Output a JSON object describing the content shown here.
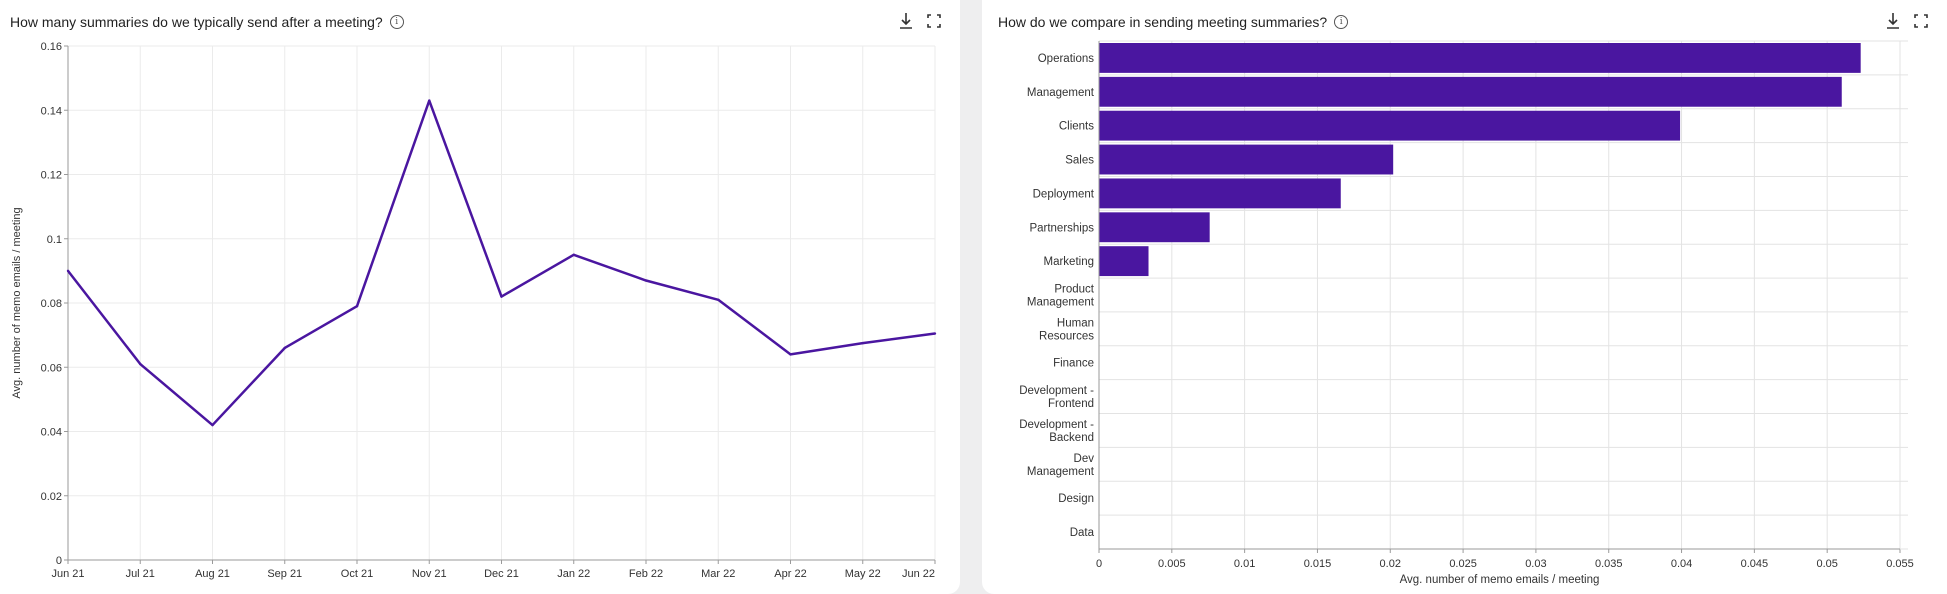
{
  "colors": {
    "series": "#4a16a0",
    "grid": "#ebebeb",
    "axis": "#9a9a9a",
    "text": "#333333"
  },
  "icons": {
    "info": "info-icon",
    "download": "download-icon",
    "fullscreen": "fullscreen-icon"
  },
  "chart_data": [
    {
      "type": "line",
      "title": "How many summaries do we typically send after a meeting?",
      "ylabel": "Avg. number of memo emails / meeting",
      "xlabel": "",
      "categories": [
        "Jun 21",
        "Jul 21",
        "Aug 21",
        "Sep 21",
        "Oct 21",
        "Nov 21",
        "Dec 21",
        "Jan 22",
        "Feb 22",
        "Mar 22",
        "Apr 22",
        "May 22",
        "Jun 22"
      ],
      "values": [
        0.09,
        0.061,
        0.042,
        0.066,
        0.079,
        0.143,
        0.082,
        0.095,
        0.087,
        0.081,
        0.064,
        0.0675,
        0.0705
      ],
      "ylim": [
        0,
        0.16
      ],
      "yticks": [
        "0",
        "0.02",
        "0.04",
        "0.06",
        "0.08",
        "0.1",
        "0.12",
        "0.14",
        "0.16"
      ],
      "grid": true
    },
    {
      "type": "bar",
      "orientation": "horizontal",
      "title": "How do we compare in sending meeting summaries?",
      "xlabel": "Avg. number of memo emails / meeting",
      "ylabel": "",
      "categories": [
        [
          "Operations"
        ],
        [
          "Management"
        ],
        [
          "Clients"
        ],
        [
          "Sales"
        ],
        [
          "Deployment"
        ],
        [
          "Partnerships"
        ],
        [
          "Marketing"
        ],
        [
          "Product",
          "Management"
        ],
        [
          "Human",
          "Resources"
        ],
        [
          "Finance"
        ],
        [
          "Development -",
          "Frontend"
        ],
        [
          "Development -",
          "Backend"
        ],
        [
          "Dev",
          "Management"
        ],
        [
          "Design"
        ],
        [
          "Data"
        ]
      ],
      "values": [
        0.0523,
        0.051,
        0.0399,
        0.0202,
        0.0166,
        0.0076,
        0.0034,
        0,
        0,
        0,
        0,
        0,
        0,
        0,
        0
      ],
      "xlim": [
        0,
        0.055
      ],
      "xticks": [
        "0",
        "0.005",
        "0.01",
        "0.015",
        "0.02",
        "0.025",
        "0.03",
        "0.035",
        "0.04",
        "0.045",
        "0.05",
        "0.055"
      ],
      "grid": true
    }
  ]
}
